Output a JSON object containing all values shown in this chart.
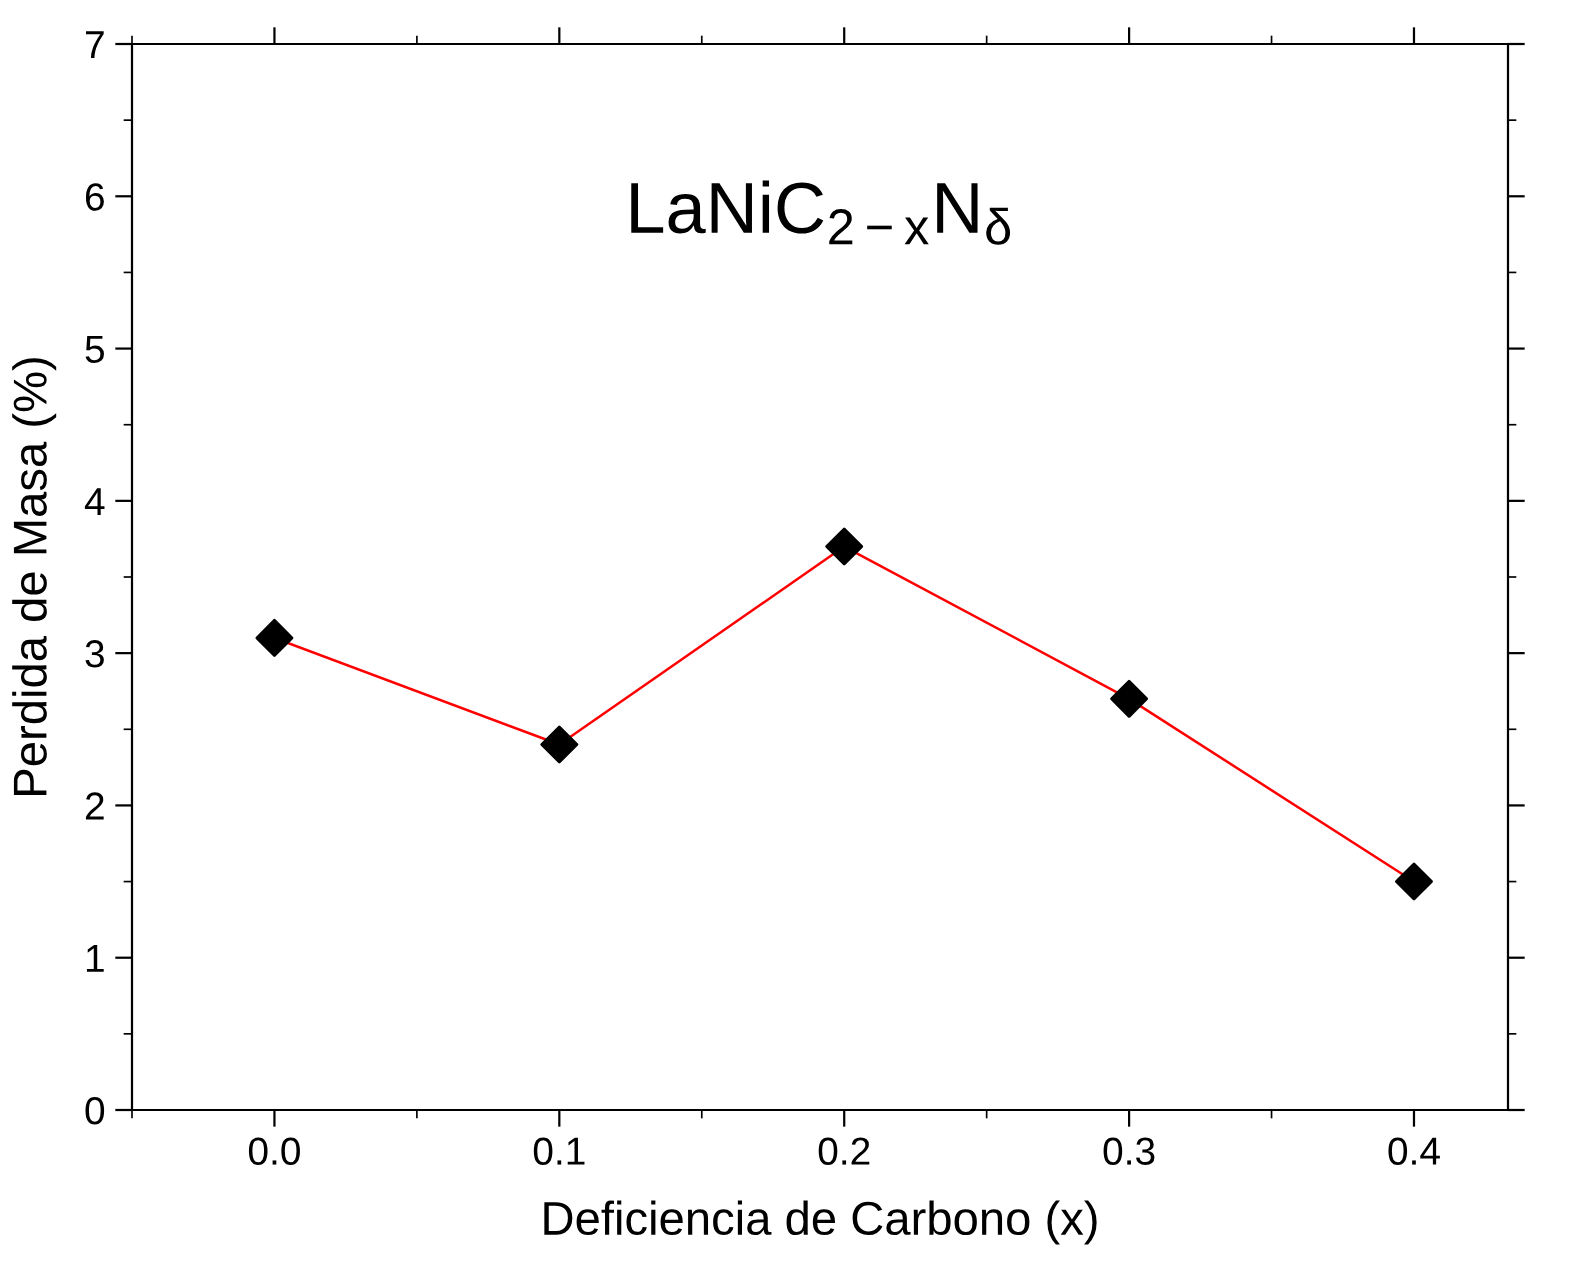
{
  "chart_data": {
    "type": "line",
    "title": "LaNiC$_{2−x}$N$_{δ}$",
    "xlabel": "Deficiencia de Carbono (x)",
    "ylabel": "Perdida de Masa (%)",
    "x": [
      0.0,
      0.1,
      0.2,
      0.3,
      0.4
    ],
    "series": [
      {
        "color": "#ff0000",
        "colors": [
          "#000000",
          "#000000",
          "#000000",
          "#000000",
          "#000000"
        ],
        "values": [
          3.1,
          2.4,
          3.7,
          2.7,
          1.5
        ]
      }
    ],
    "xlim": [
      -0.05,
      0.433
    ],
    "xticks": [
      {
        "value": 0.0,
        "label": "0.0"
      },
      {
        "value": 0.1,
        "label": "0.1"
      },
      {
        "value": 0.2,
        "label": "0.2"
      },
      {
        "value": 0.3,
        "label": "0.3"
      },
      {
        "value": 0.4,
        "label": "0.4"
      }
    ],
    "ylim": [
      0,
      7
    ],
    "yticks": [
      0,
      1,
      2,
      3,
      4,
      5,
      6,
      7
    ],
    "marker": "diamond",
    "line_style": "solid",
    "grid": false,
    "legend": false
  }
}
